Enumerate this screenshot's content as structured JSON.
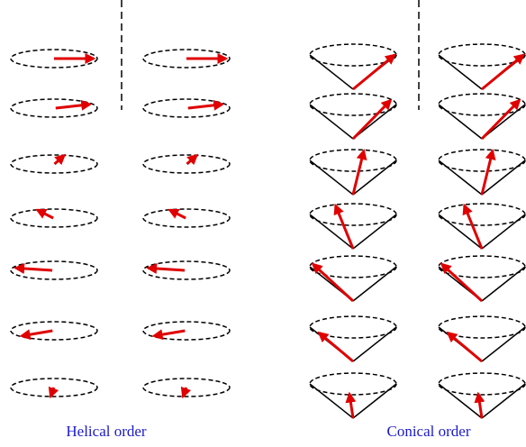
{
  "labels": {
    "helical": "Helical order",
    "conical": "Conical order"
  }
}
